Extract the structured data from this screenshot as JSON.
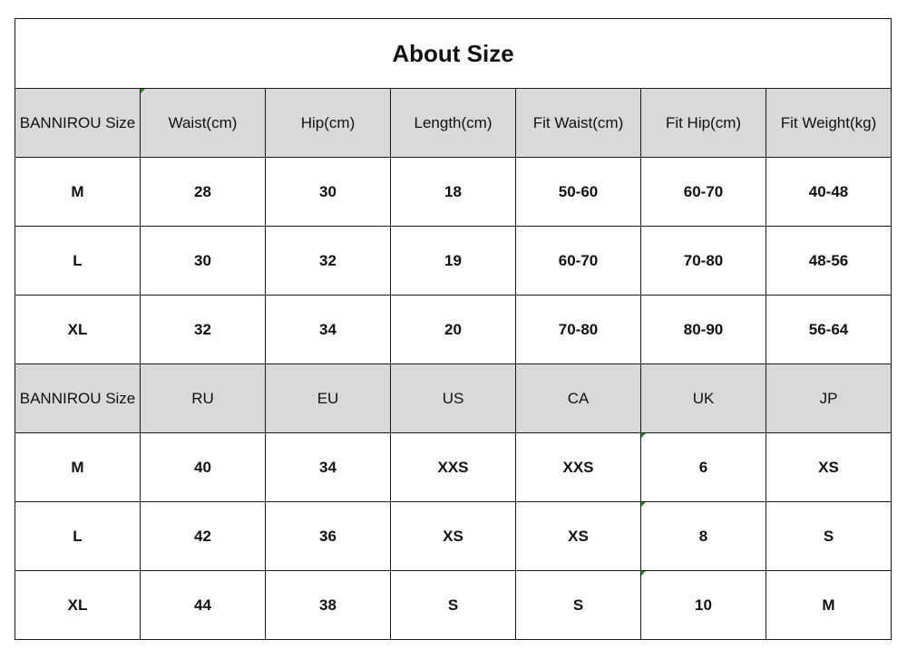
{
  "title": "About Size",
  "marker_color": "#1f8a1f",
  "header_fill": "#d9d9d9",
  "table1": {
    "headers": [
      "BANNIROU Size",
      "Waist(cm)",
      "Hip(cm)",
      "Length(cm)",
      "Fit Waist(cm)",
      "Fit Hip(cm)",
      "Fit Weight(kg)"
    ],
    "rows": [
      [
        "M",
        "28",
        "30",
        "18",
        "50-60",
        "60-70",
        "40-48"
      ],
      [
        "L",
        "30",
        "32",
        "19",
        "60-70",
        "70-80",
        "48-56"
      ],
      [
        "XL",
        "32",
        "34",
        "20",
        "70-80",
        "80-90",
        "56-64"
      ]
    ]
  },
  "table2": {
    "headers": [
      "BANNIROU Size",
      "RU",
      "EU",
      "US",
      "CA",
      "UK",
      "JP"
    ],
    "rows": [
      [
        "M",
        "40",
        "34",
        "XXS",
        "XXS",
        "6",
        "XS"
      ],
      [
        "L",
        "42",
        "36",
        "XS",
        "XS",
        "8",
        "S"
      ],
      [
        "XL",
        "44",
        "38",
        "S",
        "S",
        "10",
        "M"
      ]
    ]
  }
}
